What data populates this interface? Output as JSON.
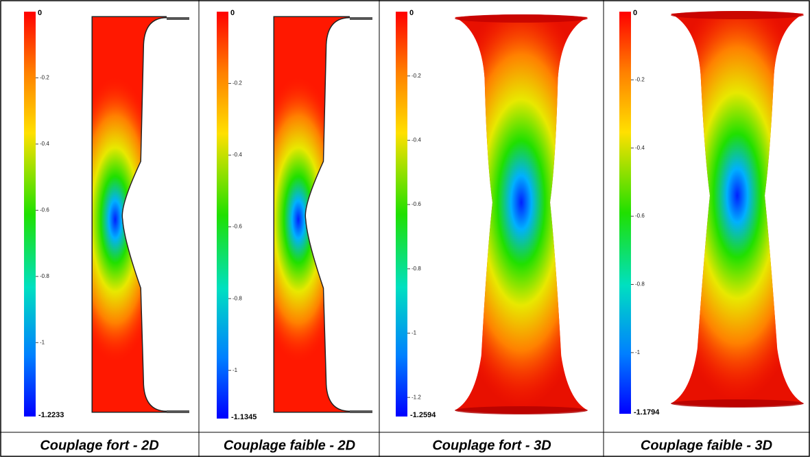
{
  "panels": [
    {
      "colorbar": {
        "max": 0,
        "ticks": [
          -0.2,
          -0.4,
          -0.6,
          -0.8,
          -1
        ],
        "min": -1.2233
      },
      "caption": "Couplage fort - 2D"
    },
    {
      "colorbar": {
        "max": 0,
        "ticks": [
          -0.2,
          -0.4,
          -0.6,
          -0.8,
          -1
        ],
        "min": -1.1345
      },
      "caption": "Couplage faible - 2D"
    },
    {
      "colorbar": {
        "max": 0,
        "ticks": [
          -0.2,
          -0.4,
          -0.6,
          -0.8,
          -1,
          -1.2
        ],
        "min": -1.2594
      },
      "caption": "Couplage fort - 3D"
    },
    {
      "colorbar": {
        "max": 0,
        "ticks": [
          -0.2,
          -0.4,
          -0.6,
          -0.8,
          -1
        ],
        "min": -1.1794
      },
      "caption": "Couplage faible - 3D"
    }
  ]
}
